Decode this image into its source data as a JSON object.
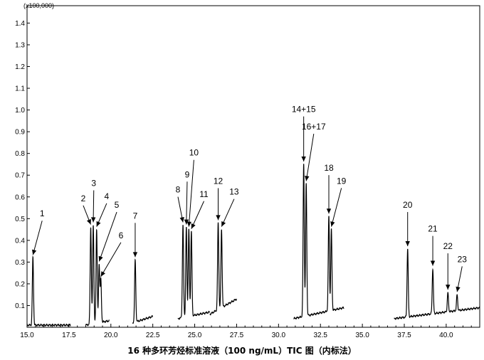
{
  "chart_data": {
    "type": "line",
    "caption": "16 种多环芳烃标准溶液（100 ng/mL）TIC 图（内标法）",
    "y_unit_label": "(x100,000)",
    "xlim": [
      15.0,
      42.0
    ],
    "ylim": [
      0.0,
      1.48
    ],
    "x_ticks": [
      15.0,
      17.5,
      20.0,
      22.5,
      25.0,
      27.5,
      30.0,
      32.5,
      35.0,
      37.5,
      40.0
    ],
    "x_tick_labels": [
      "15.0",
      "17.5",
      "20.0",
      "22.5",
      "25.0",
      "27.5",
      "30.0",
      "32.5",
      "35.0",
      "37.5",
      "40.0"
    ],
    "y_ticks": [
      0.1,
      0.2,
      0.3,
      0.4,
      0.5,
      0.6,
      0.7,
      0.8,
      0.9,
      1.0,
      1.1,
      1.2,
      1.3,
      1.4
    ],
    "y_tick_labels": [
      "0.1",
      "0.2",
      "0.3",
      "0.4",
      "0.5",
      "0.6",
      "0.7",
      "0.8",
      "0.9",
      "1.0",
      "1.1",
      "1.2",
      "1.3",
      "1.4"
    ],
    "segments": [
      {
        "start": 15.0,
        "end": 17.6,
        "baseline_start": 0.01,
        "baseline_end": 0.01
      },
      {
        "start": 18.5,
        "end": 19.9,
        "baseline_start": 0.01,
        "baseline_end": 0.03
      },
      {
        "start": 21.3,
        "end": 22.5,
        "baseline_start": 0.02,
        "baseline_end": 0.05
      },
      {
        "start": 24.0,
        "end": 25.9,
        "baseline_start": 0.04,
        "baseline_end": 0.07
      },
      {
        "start": 25.9,
        "end": 27.5,
        "baseline_start": 0.06,
        "baseline_end": 0.13
      },
      {
        "start": 30.9,
        "end": 33.9,
        "baseline_start": 0.04,
        "baseline_end": 0.09
      },
      {
        "start": 36.9,
        "end": 42.0,
        "baseline_start": 0.04,
        "baseline_end": 0.09
      }
    ],
    "peaks": [
      {
        "label": "1",
        "rt": 15.35,
        "height": 0.32,
        "label_x": 15.9,
        "label_y": 0.51
      },
      {
        "label": "2",
        "rt": 18.8,
        "height": 0.46,
        "label_x": 18.35,
        "label_y": 0.58
      },
      {
        "label": "3",
        "rt": 18.95,
        "height": 0.47,
        "label_x": 18.98,
        "label_y": 0.65
      },
      {
        "label": "4",
        "rt": 19.15,
        "height": 0.45,
        "label_x": 19.75,
        "label_y": 0.59
      },
      {
        "label": "5",
        "rt": 19.3,
        "height": 0.29,
        "label_x": 20.35,
        "label_y": 0.55
      },
      {
        "label": "6",
        "rt": 19.4,
        "height": 0.22,
        "label_x": 20.6,
        "label_y": 0.41
      },
      {
        "label": "7",
        "rt": 21.45,
        "height": 0.31,
        "label_x": 21.45,
        "label_y": 0.5
      },
      {
        "label": "8",
        "rt": 24.3,
        "height": 0.47,
        "label_x": 24.0,
        "label_y": 0.62
      },
      {
        "label": "9",
        "rt": 24.5,
        "height": 0.46,
        "label_x": 24.55,
        "label_y": 0.69
      },
      {
        "label": "10",
        "rt": 24.65,
        "height": 0.45,
        "label_x": 24.95,
        "label_y": 0.79
      },
      {
        "label": "11",
        "rt": 24.8,
        "height": 0.44,
        "label_x": 25.55,
        "label_y": 0.6
      },
      {
        "label": "12",
        "rt": 26.4,
        "height": 0.48,
        "label_x": 26.4,
        "label_y": 0.66
      },
      {
        "label": "13",
        "rt": 26.6,
        "height": 0.45,
        "label_x": 27.35,
        "label_y": 0.61
      },
      {
        "label": "14+15",
        "rt": 31.5,
        "height": 0.75,
        "label_x": 31.5,
        "label_y": 0.99
      },
      {
        "label": "16+17",
        "rt": 31.65,
        "height": 0.66,
        "label_x": 32.1,
        "label_y": 0.91
      },
      {
        "label": "18",
        "rt": 33.0,
        "height": 0.51,
        "label_x": 33.0,
        "label_y": 0.72
      },
      {
        "label": "19",
        "rt": 33.15,
        "height": 0.45,
        "label_x": 33.75,
        "label_y": 0.66
      },
      {
        "label": "20",
        "rt": 37.7,
        "height": 0.36,
        "label_x": 37.7,
        "label_y": 0.55
      },
      {
        "label": "21",
        "rt": 39.2,
        "height": 0.27,
        "label_x": 39.2,
        "label_y": 0.44
      },
      {
        "label": "22",
        "rt": 40.1,
        "height": 0.16,
        "label_x": 40.1,
        "label_y": 0.36
      },
      {
        "label": "23",
        "rt": 40.65,
        "height": 0.15,
        "label_x": 40.95,
        "label_y": 0.3
      }
    ]
  }
}
